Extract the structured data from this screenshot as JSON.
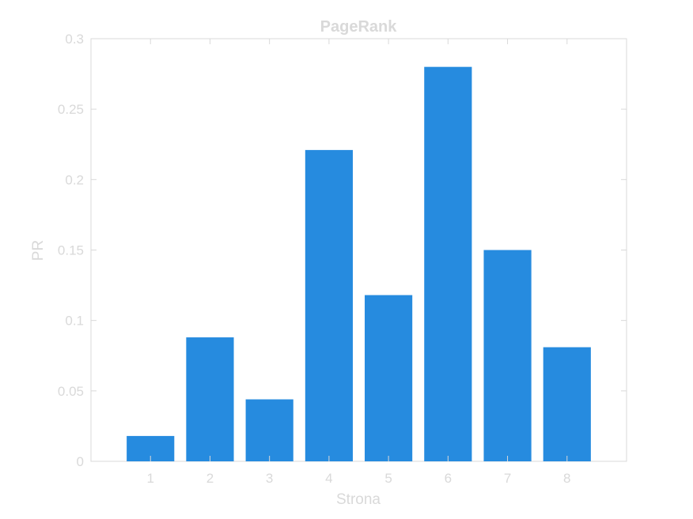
{
  "chart_data": {
    "type": "bar",
    "title": "PageRank",
    "xlabel": "Strona",
    "ylabel": "PR",
    "categories": [
      "1",
      "2",
      "3",
      "4",
      "5",
      "6",
      "7",
      "8"
    ],
    "values": [
      0.018,
      0.088,
      0.044,
      0.221,
      0.118,
      0.28,
      0.15,
      0.081
    ],
    "xlim": [
      0,
      9
    ],
    "ylim": [
      0,
      0.3
    ],
    "yticks": [
      "0",
      "0.05",
      "0.1",
      "0.15",
      "0.2",
      "0.25",
      "0.3"
    ],
    "bar_color": "#268bdf",
    "axis_color": "#d9d9d9",
    "grid": false
  }
}
